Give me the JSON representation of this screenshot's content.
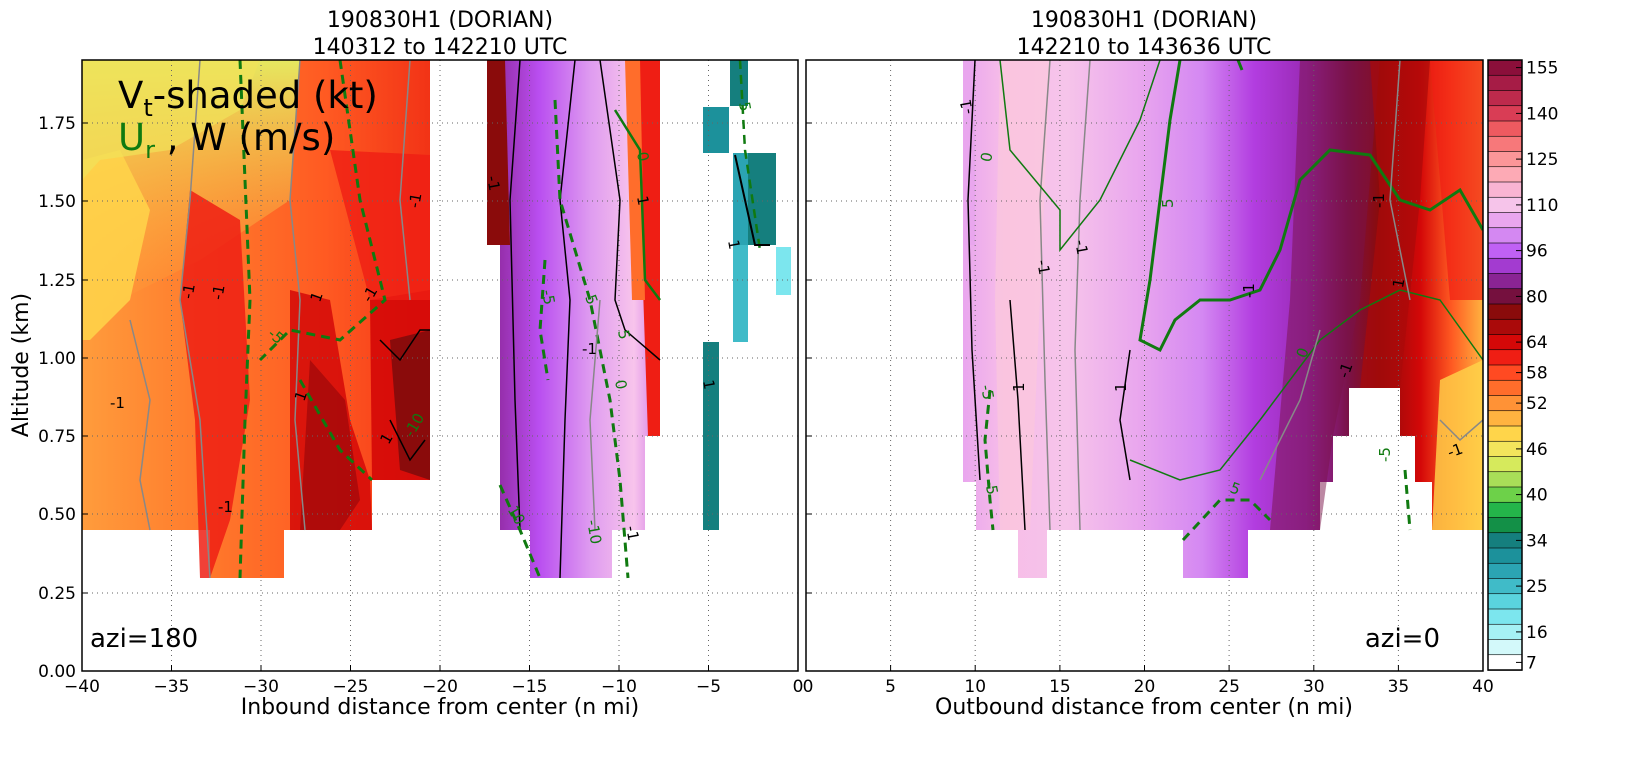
{
  "chart_data": [
    {
      "type": "heatmap",
      "title_line1": "190830H1 (DORIAN)",
      "title_line2": "140312 to 142210 UTC",
      "xlabel": "Inbound distance from center (n mi)",
      "ylabel": "Altitude (km)",
      "xlim": [
        -40,
        0
      ],
      "ylim": [
        0.0,
        1.95
      ],
      "xticks": [
        "−40",
        "−35",
        "−30",
        "−25",
        "−20",
        "−15",
        "−10",
        "−5",
        "0"
      ],
      "yticks": [
        "0.00",
        "0.25",
        "0.50",
        "0.75",
        "1.00",
        "1.25",
        "1.50",
        "1.75"
      ],
      "grid": true,
      "legend_line1_main": "V",
      "legend_line1_sub": "t",
      "legend_line1_rest": "-shaded (kt)",
      "legend_line2_main": "U",
      "legend_line2_sub": "r",
      "legend_line2_rest": " , W (m/s)",
      "annotation": "azi=180",
      "contour_labels": [
        "-1",
        "-1",
        "-1",
        "1",
        "-1",
        "1",
        "-1",
        "1",
        "-1",
        "-5",
        "-10",
        "-10",
        "-5",
        "-1",
        "5",
        "0",
        "1",
        "-5",
        "5",
        "0",
        "-1",
        "1",
        "-1",
        "-10",
        "1"
      ]
    },
    {
      "type": "heatmap",
      "title_line1": "190830H1 (DORIAN)",
      "title_line2": "142210 to 143636 UTC",
      "xlabel": "Outbound distance from center (n mi)",
      "xlim": [
        0,
        40
      ],
      "ylim": [
        0.0,
        1.95
      ],
      "xticks": [
        "0",
        "5",
        "10",
        "15",
        "20",
        "25",
        "30",
        "35",
        "40"
      ],
      "grid": true,
      "annotation": "azi=0",
      "contour_labels": [
        "-1",
        "0",
        "5",
        "-1",
        "-1",
        "1",
        "1",
        "-1",
        "-5",
        "-5",
        "0",
        "-1",
        "1",
        "5",
        "-1",
        "-1",
        "-5"
      ]
    }
  ],
  "colorbar": {
    "label_values": [
      "155",
      "140",
      "125",
      "110",
      "96",
      "80",
      "64",
      "58",
      "52",
      "46",
      "40",
      "34",
      "25",
      "16",
      "7"
    ],
    "colors_top_to_bottom": [
      "#8b0f3a",
      "#a61c46",
      "#bd2a4c",
      "#d93d55",
      "#ee5a60",
      "#f7787a",
      "#fb9698",
      "#fdaab5",
      "#f9b4d2",
      "#f6c4ea",
      "#e9a6ee",
      "#d488f2",
      "#c061f5",
      "#a33bd0",
      "#8a2494",
      "#75103e",
      "#8a0b0b",
      "#aa0a0a",
      "#d40808",
      "#ef1e14",
      "#ff4a22",
      "#ff6d2b",
      "#ff9236",
      "#ffb340",
      "#ffd54a",
      "#f3e55c",
      "#d6ea5c",
      "#a9de58",
      "#6dd149",
      "#24b54a",
      "#139047",
      "#157f7e",
      "#1c919b",
      "#2ba4b3",
      "#40bbc8",
      "#5ad4de",
      "#7ce6ee",
      "#a6f1f4",
      "#d3f9fa",
      "#ffffff"
    ]
  }
}
